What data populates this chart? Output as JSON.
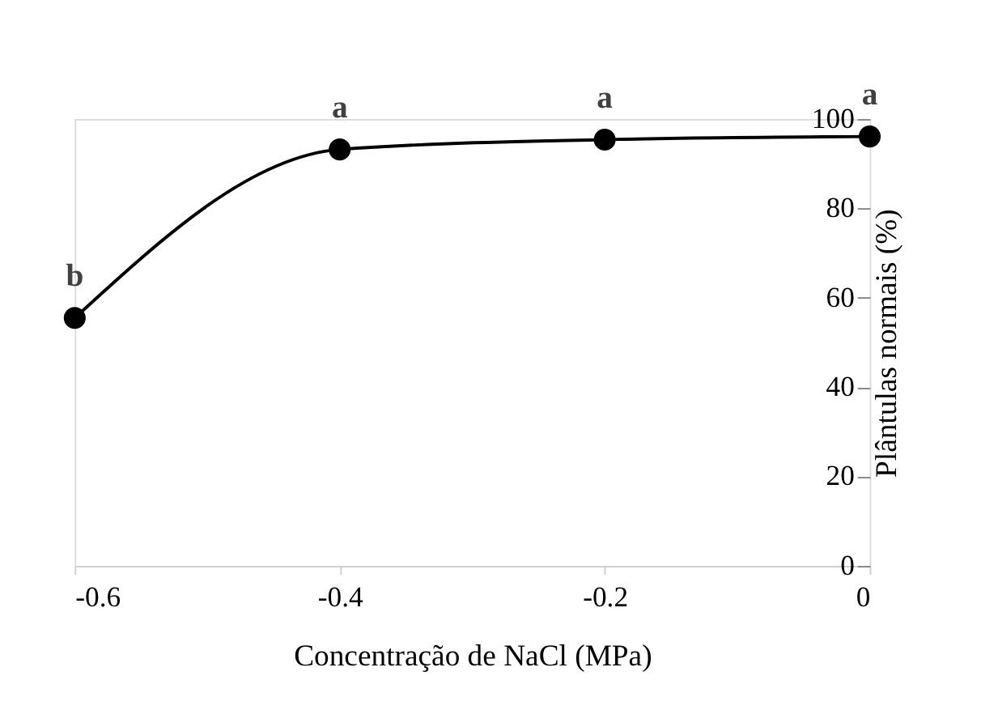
{
  "chart_data": {
    "type": "line",
    "xlabel": "Concentração de NaCl (MPa)",
    "ylabel": "Plântulas normais (%)",
    "x": [
      -0.6,
      -0.4,
      -0.2,
      0
    ],
    "series": [
      {
        "color": "#000000",
        "values": [
          55.5,
          93.2,
          95.4,
          96.1
        ]
      }
    ],
    "xlim": [
      -0.6,
      0
    ],
    "xticks": [
      -0.6,
      -0.4,
      -0.2,
      0
    ],
    "ylim": [
      0,
      100
    ],
    "yticks": [
      0,
      20,
      40,
      60,
      80,
      100
    ],
    "marker": "circle",
    "line_style": "solid",
    "grid": false,
    "annotations": [
      {
        "text": "b",
        "x": -0.6,
        "y": 55.5
      },
      {
        "text": "a",
        "x": -0.4,
        "y": 93.2
      },
      {
        "text": "a",
        "x": -0.2,
        "y": 95.4
      },
      {
        "text": "a",
        "x": 0,
        "y": 96.1
      }
    ]
  }
}
